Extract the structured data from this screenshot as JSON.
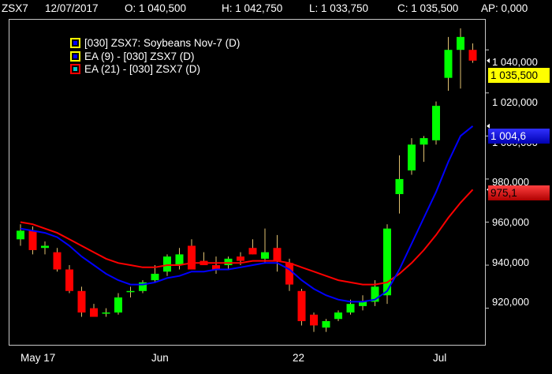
{
  "header": {
    "symbol": "ZSX7",
    "date": "12/07/2017",
    "open": "O: 1 040,500",
    "high": "H: 1 042,750",
    "low": "L: 1 033,750",
    "close": "C: 1 035,500",
    "ap": "AP: 0,000"
  },
  "legend": [
    {
      "label": "[030] ZSX7: Soybeans Nov-7      (D)",
      "box_border": "#ffff00",
      "box_fill": "#0000ff"
    },
    {
      "label": "EA (9)  - [030] ZSX7 (D)",
      "box_border": "#ffff00",
      "box_fill": "#0000ff"
    },
    {
      "label": "EA (21)  - [030] ZSX7 (D)",
      "box_border": "#ff0000",
      "box_fill": "#00c8c8"
    }
  ],
  "y_axis": {
    "labels": [
      "1 040,000",
      "1 020,000",
      "1 000,000",
      "980,000",
      "960,000",
      "940,000",
      "920,000"
    ]
  },
  "x_axis": {
    "labels": [
      "May 17",
      "Jun",
      "22",
      "Jul"
    ]
  },
  "price_tags": {
    "last": "1 035,500",
    "ema9": "1 004,6",
    "ema21": "975,1"
  },
  "colors": {
    "up": "#00ff00",
    "down": "#ff0000",
    "ema9": "#0000ff",
    "ema21": "#ff0000",
    "last_tag": "#ffff00"
  },
  "chart_data": {
    "type": "candlestick",
    "title": "[030] ZSX7: Soybeans Nov-7 (D)",
    "ylim": [
      903,
      1054
    ],
    "candles": [
      {
        "o": 952,
        "h": 959,
        "l": 949,
        "c": 956
      },
      {
        "o": 956,
        "h": 958,
        "l": 945,
        "c": 947
      },
      {
        "o": 948,
        "h": 951,
        "l": 945,
        "c": 949
      },
      {
        "o": 946,
        "h": 948,
        "l": 937,
        "c": 938
      },
      {
        "o": 938,
        "h": 940,
        "l": 927,
        "c": 928
      },
      {
        "o": 928,
        "h": 930,
        "l": 916,
        "c": 918
      },
      {
        "o": 920,
        "h": 922,
        "l": 916,
        "c": 916
      },
      {
        "o": 918,
        "h": 920,
        "l": 916,
        "c": 918
      },
      {
        "o": 918,
        "h": 927,
        "l": 917,
        "c": 925
      },
      {
        "o": 928,
        "h": 930,
        "l": 925,
        "c": 928
      },
      {
        "o": 928,
        "h": 933,
        "l": 927,
        "c": 932
      },
      {
        "o": 933,
        "h": 940,
        "l": 932,
        "c": 936
      },
      {
        "o": 937,
        "h": 945,
        "l": 935,
        "c": 944
      },
      {
        "o": 940,
        "h": 948,
        "l": 938,
        "c": 945
      },
      {
        "o": 949,
        "h": 952,
        "l": 938,
        "c": 938
      },
      {
        "o": 942,
        "h": 946,
        "l": 940,
        "c": 940
      },
      {
        "o": 940,
        "h": 944,
        "l": 936,
        "c": 938
      },
      {
        "o": 940,
        "h": 944,
        "l": 938,
        "c": 943
      },
      {
        "o": 944,
        "h": 946,
        "l": 940,
        "c": 942
      },
      {
        "o": 948,
        "h": 952,
        "l": 945,
        "c": 945
      },
      {
        "o": 943,
        "h": 957,
        "l": 941,
        "c": 946
      },
      {
        "o": 948,
        "h": 954,
        "l": 937,
        "c": 942
      },
      {
        "o": 941,
        "h": 943,
        "l": 928,
        "c": 931
      },
      {
        "o": 928,
        "h": 929,
        "l": 912,
        "c": 914
      },
      {
        "o": 917,
        "h": 918,
        "l": 909,
        "c": 912
      },
      {
        "o": 911,
        "h": 915,
        "l": 909,
        "c": 914
      },
      {
        "o": 915,
        "h": 919,
        "l": 914,
        "c": 918
      },
      {
        "o": 918,
        "h": 924,
        "l": 917,
        "c": 922
      },
      {
        "o": 921,
        "h": 926,
        "l": 919,
        "c": 923
      },
      {
        "o": 923,
        "h": 933,
        "l": 921,
        "c": 930
      },
      {
        "o": 926,
        "h": 959,
        "l": 922,
        "c": 957
      },
      {
        "o": 973,
        "h": 991,
        "l": 964,
        "c": 980
      },
      {
        "o": 984,
        "h": 999,
        "l": 982,
        "c": 996
      },
      {
        "o": 996,
        "h": 1000,
        "l": 988,
        "c": 999
      },
      {
        "o": 998,
        "h": 1016,
        "l": 996,
        "c": 1014
      },
      {
        "o": 1027,
        "h": 1046,
        "l": 1021,
        "c": 1040
      },
      {
        "o": 1040,
        "h": 1050,
        "l": 1022,
        "c": 1046
      },
      {
        "o": 1040,
        "h": 1043,
        "l": 1034,
        "c": 1035
      }
    ],
    "ema9": [
      957,
      956,
      955,
      953,
      949,
      944,
      940,
      936,
      933,
      931,
      931,
      932,
      934,
      935,
      937,
      937,
      938,
      938,
      939,
      940,
      941,
      941,
      938,
      933,
      929,
      926,
      924,
      923,
      923,
      924,
      928,
      938,
      950,
      962,
      974,
      988,
      1000,
      1004.6
    ],
    "ema21": [
      960,
      959,
      957,
      955,
      952,
      949,
      946,
      943,
      941,
      940,
      939,
      939,
      940,
      940,
      941,
      941,
      941,
      941,
      941,
      942,
      942,
      942,
      941,
      939,
      937,
      935,
      933,
      932,
      931,
      931,
      932,
      936,
      941,
      947,
      954,
      962,
      969,
      975.1
    ]
  }
}
